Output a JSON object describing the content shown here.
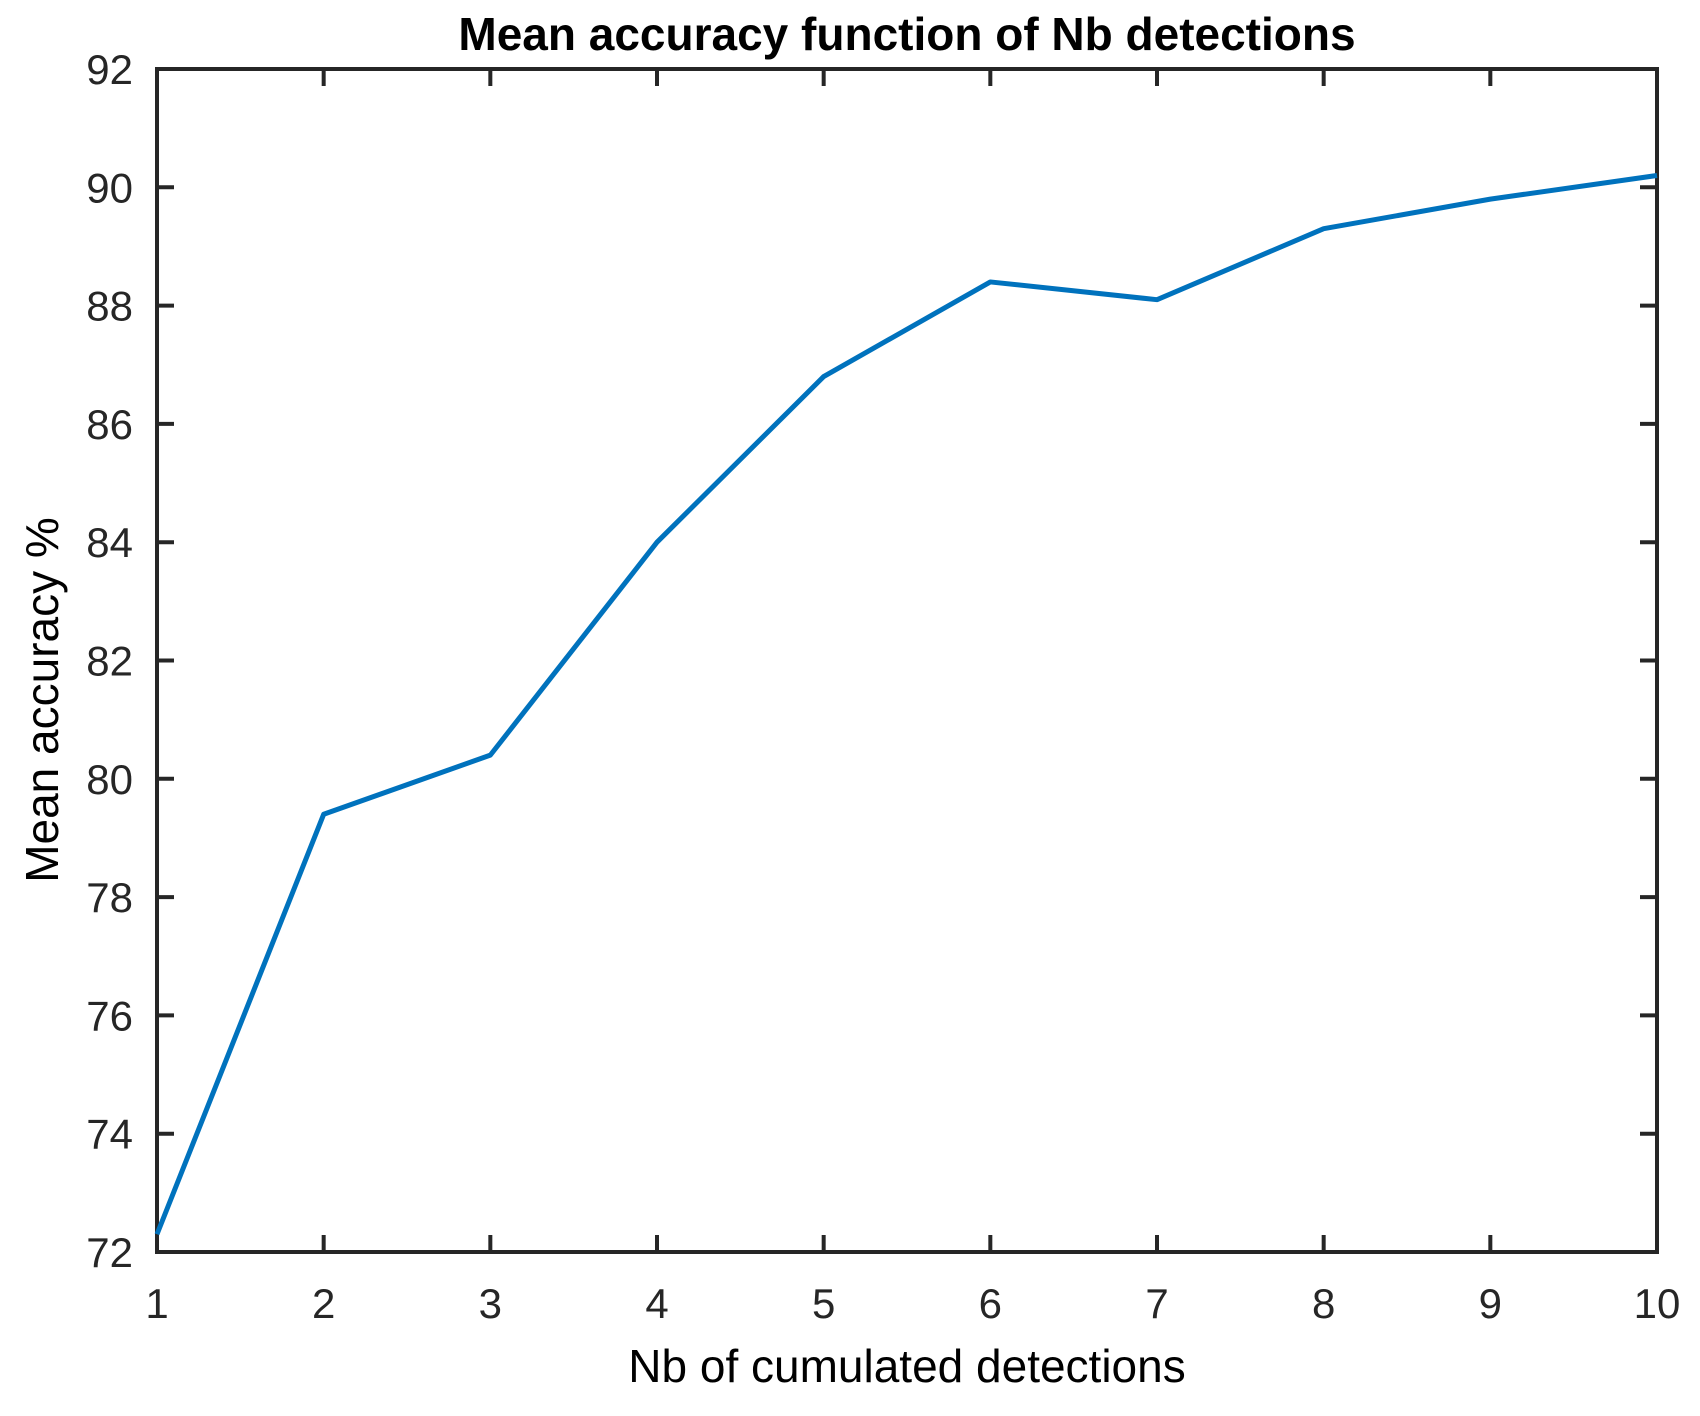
{
  "chart_data": {
    "type": "line",
    "title": "Mean accuracy function of Nb detections",
    "xlabel": "Nb of cumulated detections",
    "ylabel": "Mean accuracy %",
    "x": [
      1,
      2,
      3,
      4,
      5,
      6,
      7,
      8,
      9,
      10
    ],
    "series": [
      {
        "name": "Mean accuracy",
        "values": [
          72.3,
          79.4,
          80.4,
          84.0,
          86.8,
          88.4,
          88.1,
          89.3,
          89.8,
          90.2
        ]
      }
    ],
    "xlim": [
      1,
      10
    ],
    "ylim": [
      72,
      92
    ],
    "xticks": [
      1,
      2,
      3,
      4,
      5,
      6,
      7,
      8,
      9,
      10
    ],
    "yticks": [
      72,
      74,
      76,
      78,
      80,
      82,
      84,
      86,
      88,
      90,
      92
    ],
    "grid": false,
    "legend": "none",
    "line_color": "#0072BD",
    "axis_color": "#262626",
    "title_color": "#000000",
    "label_color": "#000000",
    "background": "#ffffff"
  }
}
